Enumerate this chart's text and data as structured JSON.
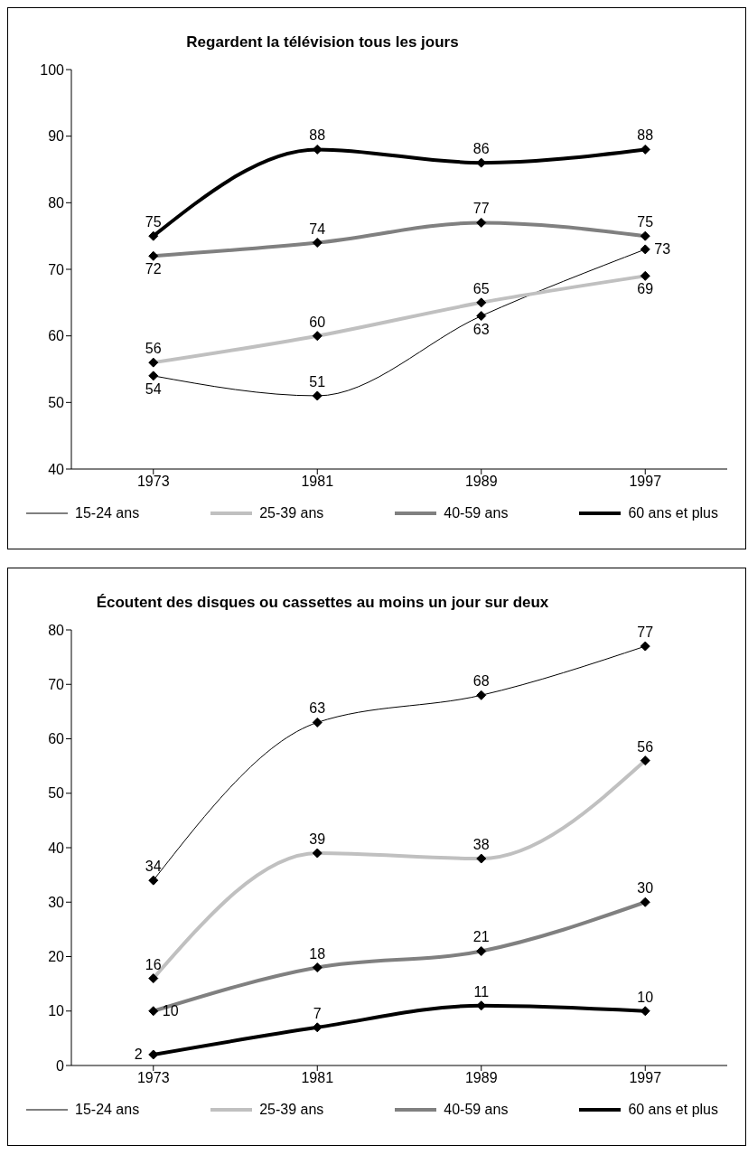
{
  "chart_data": [
    {
      "type": "line",
      "title": "Regardent la télévision tous les jours",
      "categories": [
        "1973",
        "1981",
        "1989",
        "1997"
      ],
      "ylim": [
        40,
        100
      ],
      "yticks": [
        40,
        50,
        60,
        70,
        80,
        90,
        100
      ],
      "grid": false,
      "legend": "bottom",
      "marker": "diamond",
      "line_style": "solid",
      "data_labels": true,
      "series": [
        {
          "name": "15-24 ans",
          "color": "#000000",
          "values": [
            54,
            51,
            63,
            73
          ]
        },
        {
          "name": "25-39 ans",
          "color": "#c0c0c0",
          "values": [
            56,
            60,
            65,
            69
          ]
        },
        {
          "name": "40-59 ans",
          "color": "#808080",
          "values": [
            72,
            74,
            77,
            75
          ]
        },
        {
          "name": "60 ans et plus",
          "color": "#000000",
          "values": [
            75,
            88,
            86,
            88
          ]
        }
      ]
    },
    {
      "type": "line",
      "title": "Écoutent des disques ou cassettes au moins un jour sur deux",
      "categories": [
        "1973",
        "1981",
        "1989",
        "1997"
      ],
      "ylim": [
        0,
        80
      ],
      "yticks": [
        0,
        10,
        20,
        30,
        40,
        50,
        60,
        70,
        80
      ],
      "grid": false,
      "legend": "bottom",
      "marker": "diamond",
      "line_style": "solid",
      "data_labels": true,
      "series": [
        {
          "name": "15-24 ans",
          "color": "#000000",
          "values": [
            34,
            63,
            68,
            77
          ]
        },
        {
          "name": "25-39 ans",
          "color": "#c0c0c0",
          "values": [
            16,
            39,
            38,
            56
          ]
        },
        {
          "name": "40-59 ans",
          "color": "#808080",
          "values": [
            10,
            18,
            21,
            30
          ]
        },
        {
          "name": "60 ans et plus",
          "color": "#000000",
          "values": [
            2,
            7,
            11,
            10
          ]
        }
      ]
    }
  ]
}
